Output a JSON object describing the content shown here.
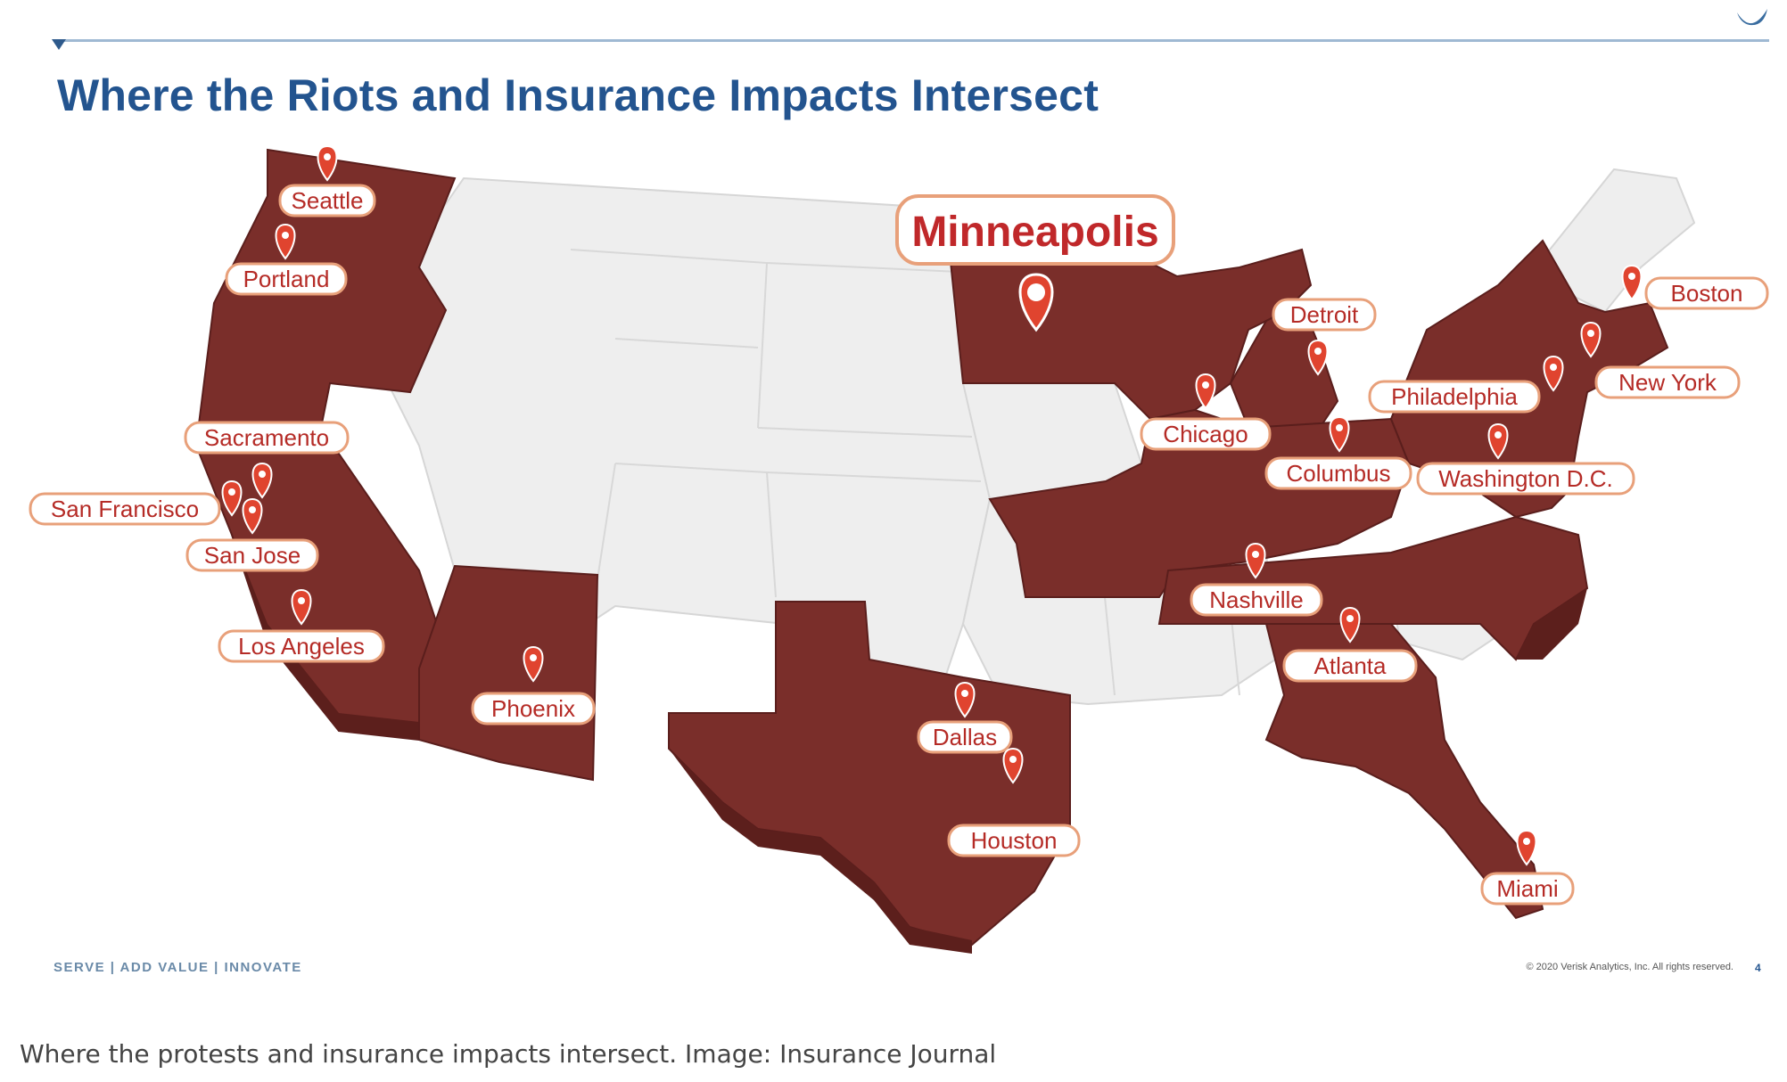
{
  "slide": {
    "title": "Where the Riots and Insurance Impacts Intersect",
    "footer_tagline": "SERVE | ADD VALUE | INNOVATE",
    "footer_copyright": "© 2020 Verisk Analytics, Inc. All rights reserved.",
    "page_number": "4"
  },
  "caption": "Where the protests and insurance impacts intersect. Image: Insurance Journal",
  "map": {
    "highlight_color": "#7a2e2a",
    "base_color": "#eeeeee",
    "pin_color": "#e0442f",
    "cities": [
      {
        "name": "Minneapolis",
        "primary": true
      },
      {
        "name": "Seattle"
      },
      {
        "name": "Portland"
      },
      {
        "name": "Sacramento"
      },
      {
        "name": "San Francisco"
      },
      {
        "name": "San Jose"
      },
      {
        "name": "Los Angeles"
      },
      {
        "name": "Phoenix"
      },
      {
        "name": "Dallas"
      },
      {
        "name": "Houston"
      },
      {
        "name": "Detroit"
      },
      {
        "name": "Chicago"
      },
      {
        "name": "Columbus"
      },
      {
        "name": "Nashville"
      },
      {
        "name": "Atlanta"
      },
      {
        "name": "Miami"
      },
      {
        "name": "Philadelphia"
      },
      {
        "name": "Washington D.C."
      },
      {
        "name": "New York"
      },
      {
        "name": "Boston"
      }
    ]
  }
}
